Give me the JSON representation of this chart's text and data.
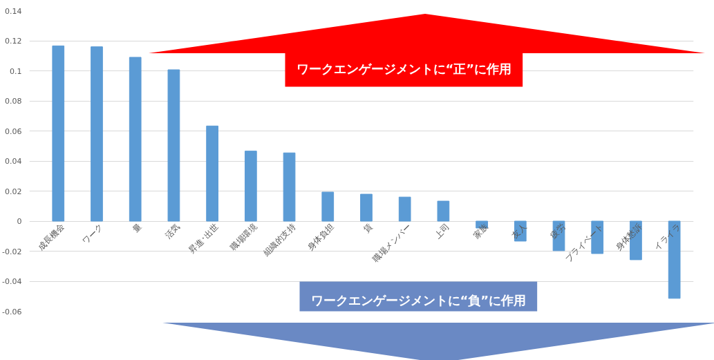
{
  "chart_data": {
    "type": "bar",
    "categories": [
      "成長機会",
      "ワーク",
      "量",
      "活気",
      "昇進･出世",
      "職場環境",
      "組織的支持",
      "身体負担",
      "賃",
      "職場メンバー",
      "上司",
      "家族",
      "友人",
      "疲労",
      "プライベート",
      "身体愁訴",
      "イライラ"
    ],
    "values": [
      0.1166,
      0.116,
      0.109,
      0.1007,
      0.0633,
      0.0466,
      0.0454,
      0.0193,
      0.0179,
      0.016,
      0.0133,
      -0.0046,
      -0.0133,
      -0.0197,
      -0.0216,
      -0.0257,
      -0.0514
    ],
    "color": "#5b9bd5",
    "ylim": [
      -0.06,
      0.14
    ],
    "yticks": [
      {
        "value": -0.06,
        "label": "-0.06"
      },
      {
        "value": -0.04,
        "label": "-0.04"
      },
      {
        "value": -0.02,
        "label": "-0.02"
      },
      0,
      {
        "value": 0.02,
        "label": "0.02"
      },
      {
        "value": 0.04,
        "label": "0.04"
      },
      {
        "value": 0.06,
        "label": "0.06"
      },
      {
        "value": 0.08,
        "label": "0.08"
      },
      {
        "value": 0.1,
        "label": "0.1"
      },
      {
        "value": 0.12,
        "label": "0.12"
      },
      {
        "value": 0.14,
        "label": "0.14"
      }
    ],
    "grid": "y",
    "annotations": [
      "ワークエンゲージメントに“正”に作用",
      "ワークエンゲージメントに“負”に作用"
    ]
  }
}
